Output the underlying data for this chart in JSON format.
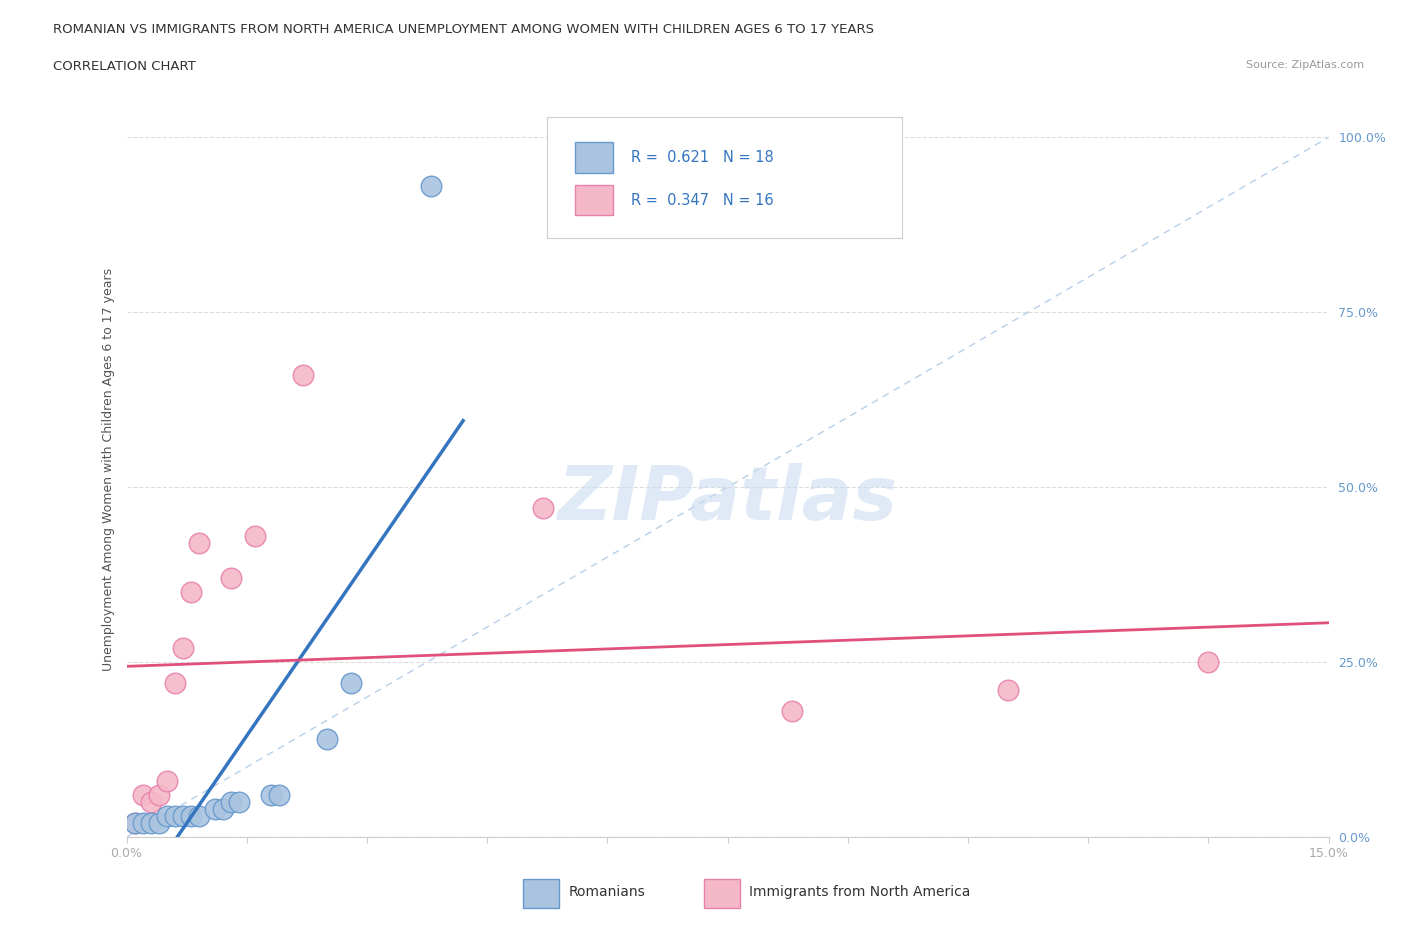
{
  "title_line1": "ROMANIAN VS IMMIGRANTS FROM NORTH AMERICA UNEMPLOYMENT AMONG WOMEN WITH CHILDREN AGES 6 TO 17 YEARS",
  "title_line2": "CORRELATION CHART",
  "source": "Source: ZipAtlas.com",
  "ylabel": "Unemployment Among Women with Children Ages 6 to 17 years",
  "xlim": [
    0.0,
    0.15
  ],
  "ylim": [
    0.0,
    1.05
  ],
  "xticks": [
    0.0,
    0.015,
    0.03,
    0.045,
    0.06,
    0.075,
    0.09,
    0.105,
    0.12,
    0.135,
    0.15
  ],
  "yticks": [
    0.0,
    0.25,
    0.5,
    0.75,
    1.0
  ],
  "ytick_labels": [
    "0.0%",
    "25.0%",
    "50.0%",
    "75.0%",
    "100.0%"
  ],
  "romanian_color": "#aac4e0",
  "immigrant_color": "#f5b8c8",
  "romanian_edge": "#6699cc",
  "immigrant_edge": "#e880aa",
  "trend_romanian_color": "#3575c0",
  "trend_immigrant_color": "#e0507a",
  "diagonal_color": "#b8cfe8",
  "R_romanian": 0.621,
  "N_romanian": 18,
  "R_immigrant": 0.347,
  "N_immigrant": 16,
  "watermark": "ZIPatlas",
  "legend_bottom": [
    "Romanians",
    "Immigrants from North America"
  ],
  "romanian_x": [
    0.001,
    0.002,
    0.003,
    0.004,
    0.005,
    0.006,
    0.007,
    0.008,
    0.009,
    0.011,
    0.012,
    0.013,
    0.014,
    0.018,
    0.019,
    0.025,
    0.028,
    0.038
  ],
  "romanian_y": [
    0.02,
    0.02,
    0.02,
    0.02,
    0.03,
    0.03,
    0.03,
    0.03,
    0.03,
    0.04,
    0.04,
    0.05,
    0.05,
    0.06,
    0.06,
    0.14,
    0.22,
    0.93
  ],
  "immigrant_x": [
    0.001,
    0.002,
    0.003,
    0.004,
    0.005,
    0.006,
    0.007,
    0.008,
    0.009,
    0.013,
    0.016,
    0.022,
    0.052,
    0.083,
    0.11,
    0.135
  ],
  "immigrant_y": [
    0.02,
    0.06,
    0.05,
    0.06,
    0.08,
    0.22,
    0.27,
    0.35,
    0.42,
    0.37,
    0.43,
    0.66,
    0.47,
    0.18,
    0.21,
    0.25
  ],
  "marker_size": 220
}
